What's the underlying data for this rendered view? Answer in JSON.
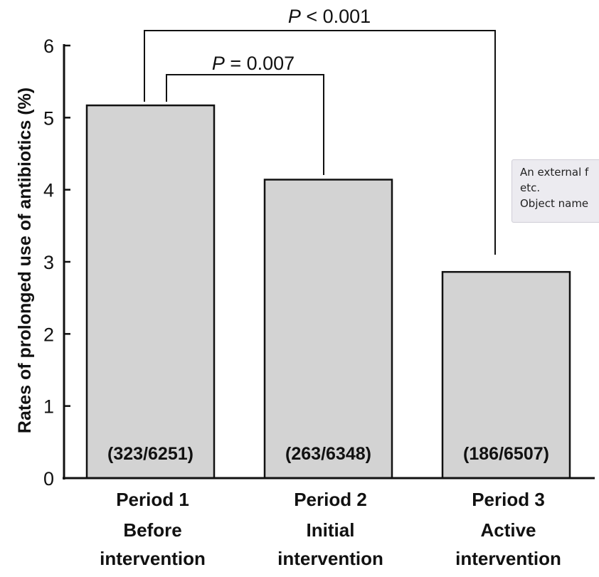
{
  "chart_data": {
    "type": "bar",
    "ylabel": "Rates of prolonged use of antibiotics (%)",
    "ylim": [
      0,
      6
    ],
    "yticks": [
      "0",
      "1",
      "2",
      "3",
      "4",
      "5",
      "6"
    ],
    "grid": false,
    "categories": [
      {
        "line1": "Period 1",
        "line2": "Before",
        "line3": "intervention"
      },
      {
        "line1": "Period 2",
        "line2": "Initial",
        "line3": "intervention"
      },
      {
        "line1": "Period 3",
        "line2": "Active",
        "line3": "intervention"
      }
    ],
    "values": [
      5.17,
      4.14,
      2.86
    ],
    "bar_labels": [
      "(323/6251)",
      "(263/6348)",
      "(186/6507)"
    ],
    "bar_color": "#d3d3d3",
    "comparisons": [
      {
        "from": 0,
        "to": 1,
        "label": "P = 0.007"
      },
      {
        "from": 0,
        "to": 2,
        "label": "P < 0.001"
      }
    ]
  },
  "tooltip": {
    "line1": "An external f",
    "line2": "etc.",
    "line3": "Object name"
  }
}
